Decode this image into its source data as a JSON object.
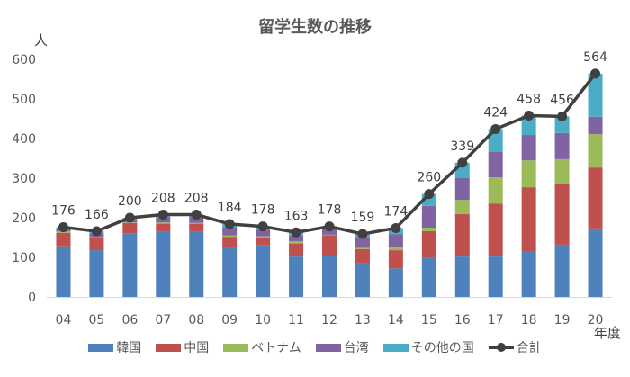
{
  "chart_data": {
    "type": "bar",
    "subtype": "stacked-bar-with-line",
    "title": "留学生数の推移",
    "ylabel": "人",
    "xlabel": "年度",
    "ylim": [
      0,
      600
    ],
    "yticks": [
      0,
      100,
      200,
      300,
      400,
      500,
      600
    ],
    "grid": false,
    "legend_position": "bottom",
    "categories": [
      "04",
      "05",
      "06",
      "07",
      "08",
      "09",
      "10",
      "11",
      "12",
      "13",
      "14",
      "15",
      "16",
      "17",
      "18",
      "19",
      "20"
    ],
    "series": [
      {
        "name": "韓国",
        "color": "#4f81bd",
        "type": "bar",
        "values": [
          128,
          118,
          161,
          165,
          165,
          124,
          130,
          102,
          104,
          85,
          72,
          98,
          102,
          102,
          116,
          132,
          173
        ]
      },
      {
        "name": "中国",
        "color": "#c0504d",
        "type": "bar",
        "values": [
          34,
          32,
          26,
          20,
          20,
          28,
          20,
          33,
          52,
          36,
          46,
          68,
          107,
          134,
          161,
          154,
          154
        ]
      },
      {
        "name": "ベトナム",
        "color": "#9bbb59",
        "type": "bar",
        "values": [
          4,
          1,
          1,
          3,
          2,
          3,
          3,
          6,
          1,
          3,
          8,
          9,
          36,
          66,
          68,
          62,
          84
        ]
      },
      {
        "name": "台湾",
        "color": "#8064a2",
        "type": "bar",
        "values": [
          6,
          10,
          7,
          14,
          17,
          21,
          17,
          14,
          14,
          25,
          32,
          55,
          55,
          64,
          64,
          66,
          44
        ]
      },
      {
        "name": "その他の国",
        "color": "#4bacc6",
        "type": "bar",
        "values": [
          4,
          5,
          5,
          6,
          4,
          8,
          8,
          8,
          7,
          10,
          16,
          30,
          39,
          58,
          49,
          42,
          109
        ]
      },
      {
        "name": "合計",
        "color": "#404040",
        "type": "line",
        "values": [
          176,
          166,
          200,
          208,
          208,
          184,
          178,
          163,
          178,
          159,
          174,
          260,
          339,
          424,
          458,
          456,
          564
        ]
      }
    ]
  }
}
